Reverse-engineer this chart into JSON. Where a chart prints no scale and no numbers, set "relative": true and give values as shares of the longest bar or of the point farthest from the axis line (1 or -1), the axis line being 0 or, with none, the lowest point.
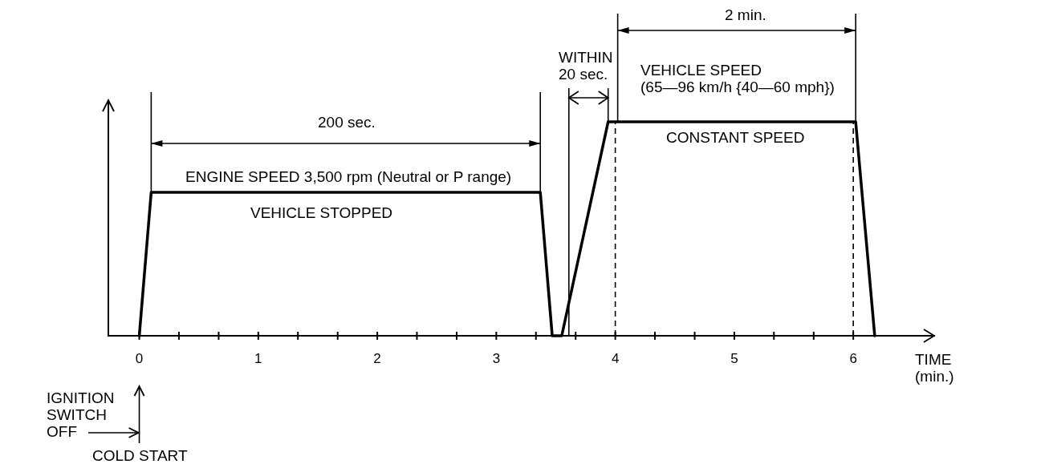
{
  "chart_data": {
    "type": "line",
    "relative": true,
    "x": [
      0,
      0.1,
      3.37,
      3.47,
      3.55,
      3.94,
      6.02,
      6.18
    ],
    "values": [
      0,
      0.67,
      0.67,
      0,
      0,
      1,
      1,
      0
    ],
    "color": "#000000",
    "xlabel": "TIME\n(min.)",
    "xlim": [
      -0.26,
      6.68
    ],
    "xticks": [
      0,
      {
        "value": 0.333,
        "label": null
      },
      {
        "value": 0.667,
        "label": null
      },
      1,
      {
        "value": 1.333,
        "label": null
      },
      {
        "value": 1.667,
        "label": null
      },
      2,
      {
        "value": 2.333,
        "label": null
      },
      {
        "value": 2.667,
        "label": null
      },
      3,
      {
        "value": 3.333,
        "label": null
      },
      {
        "value": 3.667,
        "label": null
      },
      4,
      {
        "value": 4.333,
        "label": null
      },
      {
        "value": 4.667,
        "label": null
      },
      5,
      {
        "value": 5.333,
        "label": null
      },
      {
        "value": 5.667,
        "label": null
      },
      6
    ],
    "ref_lines": [
      {
        "axis": "x",
        "value": 3.61
      },
      {
        "axis": "x",
        "value": 4,
        "line_style": "dashed"
      },
      {
        "axis": "x",
        "value": 6,
        "line_style": "dashed"
      }
    ],
    "annotations": [
      "200 sec.",
      "ENGINE SPEED 3,500 rpm (Neutral or P range)",
      "VEHICLE STOPPED",
      "WITHIN\n20 sec.",
      "2 min.",
      "VEHICLE SPEED\n(65—96 km/h {40—60 mph})",
      "CONSTANT SPEED",
      "IGNITION\nSWITCH\nOFF",
      "COLD START"
    ]
  }
}
